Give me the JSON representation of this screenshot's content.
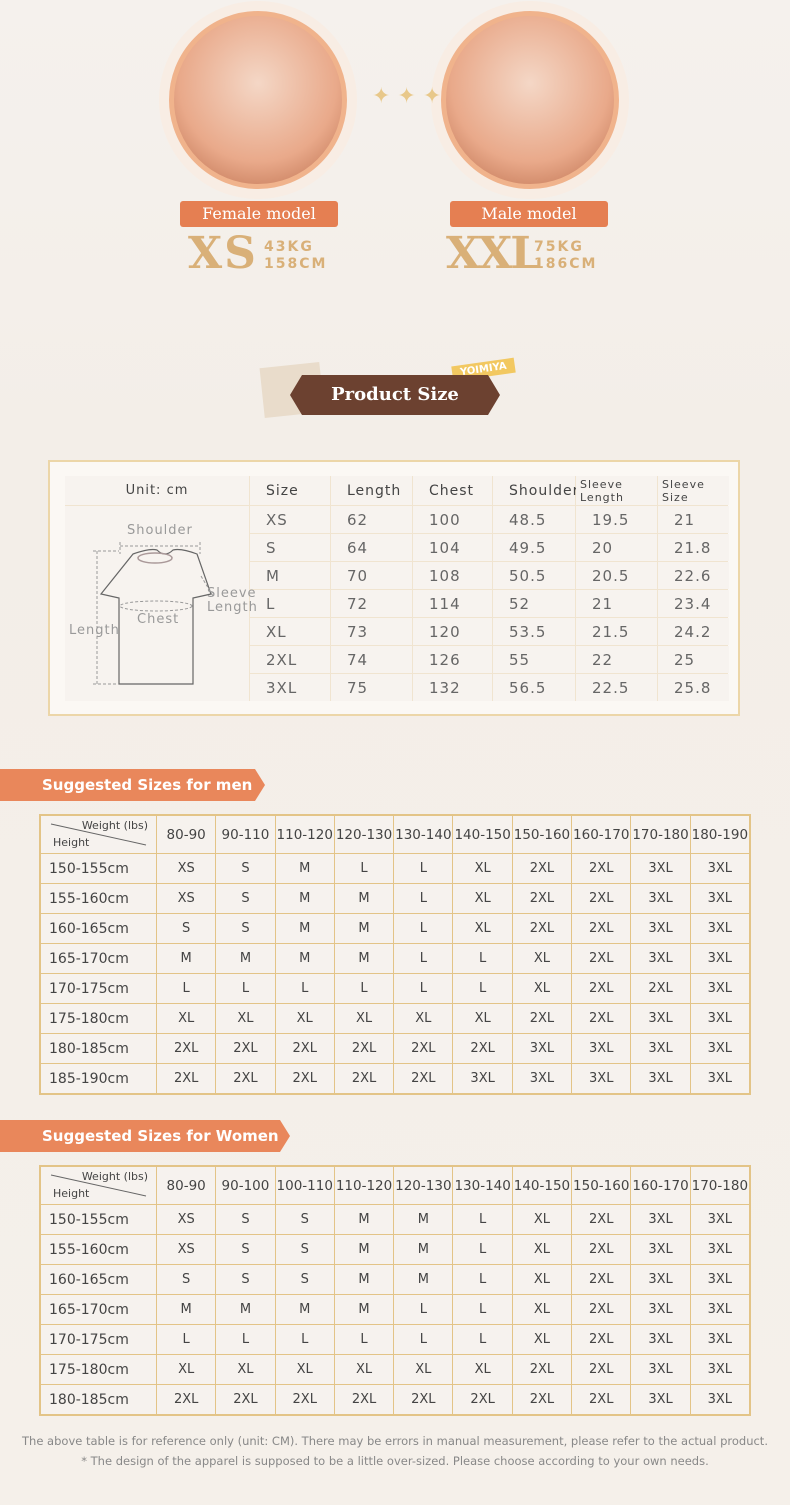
{
  "models": [
    {
      "label": "Female model",
      "size": "XS",
      "weight": "43KG",
      "height": "158CM"
    },
    {
      "label": "Male model",
      "size": "XXL",
      "weight": "75KG",
      "height": "186CM"
    }
  ],
  "product_size": {
    "title": "Product Size",
    "badge": "YOIMIYA",
    "unit": "Unit: cm",
    "diagram": {
      "shoulder": "Shoulder",
      "chest": "Chest",
      "sleeve": "Sleeve Length",
      "length": "Length"
    },
    "header": [
      "Size",
      "Length",
      "Chest",
      "Shoulder",
      "Sleeve Length",
      "Sleeve Size"
    ],
    "rows": [
      [
        "XS",
        62,
        100,
        48.5,
        19.5,
        21
      ],
      [
        "S",
        64,
        104,
        49.5,
        20,
        21.8
      ],
      [
        "M",
        70,
        108,
        50.5,
        20.5,
        22.6
      ],
      [
        "L",
        72,
        114,
        52,
        21,
        23.4
      ],
      [
        "XL",
        73,
        120,
        53.5,
        21.5,
        24.2
      ],
      [
        "2XL",
        74,
        126,
        55,
        22,
        25
      ],
      [
        "3XL",
        75,
        132,
        56.5,
        22.5,
        25.8
      ]
    ]
  },
  "men": {
    "title": "Suggested Sizes for men",
    "weight_label": "Weight (lbs)",
    "height_label": "Height",
    "columns": [
      "80-90",
      "90-110",
      "110-120",
      "120-130",
      "130-140",
      "140-150",
      "150-160",
      "160-170",
      "170-180",
      "180-190"
    ],
    "rows": [
      [
        "150-155cm",
        "XS",
        "S",
        "M",
        "L",
        "L",
        "XL",
        "2XL",
        "2XL",
        "3XL",
        "3XL"
      ],
      [
        "155-160cm",
        "XS",
        "S",
        "M",
        "M",
        "L",
        "XL",
        "2XL",
        "2XL",
        "3XL",
        "3XL"
      ],
      [
        "160-165cm",
        "S",
        "S",
        "M",
        "M",
        "L",
        "XL",
        "2XL",
        "2XL",
        "3XL",
        "3XL"
      ],
      [
        "165-170cm",
        "M",
        "M",
        "M",
        "M",
        "L",
        "L",
        "XL",
        "2XL",
        "3XL",
        "3XL"
      ],
      [
        "170-175cm",
        "L",
        "L",
        "L",
        "L",
        "L",
        "L",
        "XL",
        "2XL",
        "2XL",
        "3XL"
      ],
      [
        "175-180cm",
        "XL",
        "XL",
        "XL",
        "XL",
        "XL",
        "XL",
        "2XL",
        "2XL",
        "3XL",
        "3XL"
      ],
      [
        "180-185cm",
        "2XL",
        "2XL",
        "2XL",
        "2XL",
        "2XL",
        "2XL",
        "3XL",
        "3XL",
        "3XL",
        "3XL"
      ],
      [
        "185-190cm",
        "2XL",
        "2XL",
        "2XL",
        "2XL",
        "2XL",
        "3XL",
        "3XL",
        "3XL",
        "3XL",
        "3XL"
      ]
    ]
  },
  "women": {
    "title": "Suggested Sizes for Women",
    "weight_label": "Weight (lbs)",
    "height_label": "Height",
    "columns": [
      "80-90",
      "90-100",
      "100-110",
      "110-120",
      "120-130",
      "130-140",
      "140-150",
      "150-160",
      "160-170",
      "170-180"
    ],
    "rows": [
      [
        "150-155cm",
        "XS",
        "S",
        "S",
        "M",
        "M",
        "L",
        "XL",
        "2XL",
        "3XL",
        "3XL"
      ],
      [
        "155-160cm",
        "XS",
        "S",
        "S",
        "M",
        "M",
        "L",
        "XL",
        "2XL",
        "3XL",
        "3XL"
      ],
      [
        "160-165cm",
        "S",
        "S",
        "S",
        "M",
        "M",
        "L",
        "XL",
        "2XL",
        "3XL",
        "3XL"
      ],
      [
        "165-170cm",
        "M",
        "M",
        "M",
        "M",
        "L",
        "L",
        "XL",
        "2XL",
        "3XL",
        "3XL"
      ],
      [
        "170-175cm",
        "L",
        "L",
        "L",
        "L",
        "L",
        "L",
        "XL",
        "2XL",
        "3XL",
        "3XL"
      ],
      [
        "175-180cm",
        "XL",
        "XL",
        "XL",
        "XL",
        "XL",
        "XL",
        "2XL",
        "2XL",
        "3XL",
        "3XL"
      ],
      [
        "180-185cm",
        "2XL",
        "2XL",
        "2XL",
        "2XL",
        "2XL",
        "2XL",
        "2XL",
        "2XL",
        "3XL",
        "3XL"
      ]
    ]
  },
  "notes": [
    "The above table is for reference only (unit: CM). There may be errors in manual measurement, please refer to the actual product.",
    "* The design of the apparel is supposed to be a little over-sized.  Please choose according to your own needs."
  ]
}
